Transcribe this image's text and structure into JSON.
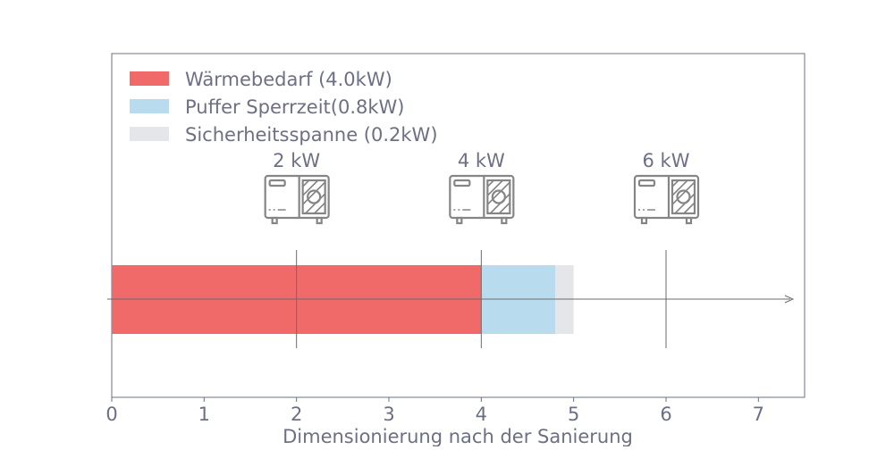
{
  "chart_data": {
    "type": "bar",
    "orientation": "horizontal",
    "stacked": true,
    "xlabel": "Dimensionierung nach der Sanierung",
    "ylabel": "",
    "xlim": [
      0,
      7.5
    ],
    "xticks": [
      "0",
      "1",
      "2",
      "3",
      "4",
      "5",
      "6",
      "7"
    ],
    "grid": false,
    "legend_position": "top-left",
    "series": [
      {
        "name": "Wärmebedarf (4.0kW)",
        "value": 4.0,
        "color": "#f06a6a"
      },
      {
        "name": "Puffer Sperrzeit(0.8kW)",
        "value": 0.8,
        "color": "#b8dcee"
      },
      {
        "name": "Sicherheitsspanne (0.2kW)",
        "value": 0.2,
        "color": "#e5e6ea"
      }
    ],
    "markers": [
      {
        "x": 2,
        "label": "2 kW",
        "icon": "heat-pump-icon"
      },
      {
        "x": 4,
        "label": "4 kW",
        "icon": "heat-pump-icon"
      },
      {
        "x": 6,
        "label": "6 kW",
        "icon": "heat-pump-icon"
      }
    ],
    "text_color": "#6b7084",
    "line_color": "#6b6b6b"
  }
}
